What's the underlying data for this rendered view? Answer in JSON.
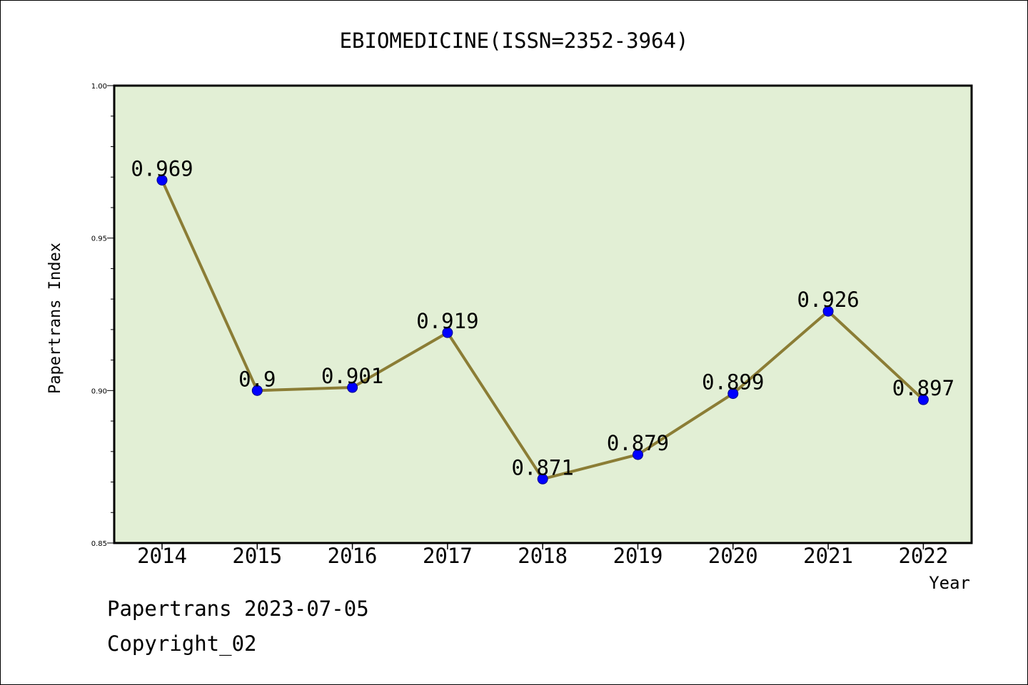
{
  "chart_data": {
    "type": "line",
    "title": "EBIOMEDICINE(ISSN=2352-3964)",
    "xlabel": "Year",
    "ylabel": "Papertrans Index",
    "categories": [
      "2014",
      "2015",
      "2016",
      "2017",
      "2018",
      "2019",
      "2020",
      "2021",
      "2022"
    ],
    "series": [
      {
        "values": [
          0.969,
          0.9,
          0.901,
          0.919,
          0.871,
          0.879,
          0.899,
          0.926,
          0.897
        ],
        "labels": [
          "0.969",
          "0.9",
          "0.901",
          "0.919",
          "0.871",
          "0.879",
          "0.899",
          "0.926",
          "0.897"
        ]
      }
    ],
    "ylim": [
      0.85,
      1.0
    ],
    "yticks": [
      "0.85",
      "0.90",
      "0.95",
      "1.00"
    ],
    "grid": false,
    "colors": {
      "plot_background": "#e2efd5",
      "line": "#8b7d35",
      "marker": "#0000ff"
    }
  },
  "footer": {
    "line1": "Papertrans 2023-07-05",
    "line2": "Copyright_02"
  }
}
